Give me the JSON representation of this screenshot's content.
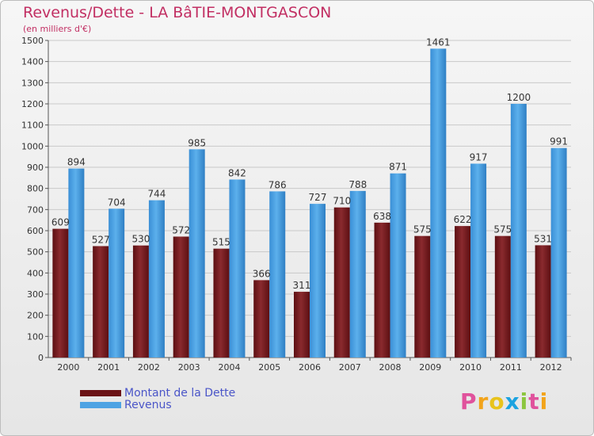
{
  "chart_data": {
    "type": "bar",
    "title": "Revenus/Dette - LA BâTIE-MONTGASCON",
    "subtitle": "(en milliers d'€)",
    "categories": [
      "2000",
      "2001",
      "2002",
      "2003",
      "2004",
      "2005",
      "2006",
      "2007",
      "2008",
      "2009",
      "2010",
      "2011",
      "2012"
    ],
    "series": [
      {
        "name": "Montant de la Dette",
        "color": "#7a1a1f",
        "values": [
          609,
          527,
          530,
          572,
          515,
          366,
          311,
          710,
          638,
          575,
          622,
          575,
          531
        ]
      },
      {
        "name": "Revenus",
        "color": "#4ea3e3",
        "values": [
          894,
          704,
          744,
          985,
          842,
          786,
          727,
          788,
          871,
          1461,
          917,
          1200,
          991
        ]
      }
    ],
    "ylim": [
      0,
      1500
    ],
    "yticks": [
      0,
      100,
      200,
      300,
      400,
      500,
      600,
      700,
      800,
      900,
      1000,
      1100,
      1200,
      1300,
      1400,
      1500
    ],
    "grid": true,
    "legend_position": "bottom-left"
  },
  "legend": [
    {
      "label": "Montant de la Dette",
      "color": "#6b1316"
    },
    {
      "label": "Revenus",
      "color": "#4ea3e3"
    }
  ],
  "logo": {
    "letters": [
      "P",
      "r",
      "o",
      "x",
      "i",
      "t",
      "i"
    ],
    "colors": [
      "#e0529c",
      "#f2a41b",
      "#e8c31b",
      "#1ba3e0",
      "#8cc63f",
      "#e0529c",
      "#f2a41b"
    ]
  }
}
